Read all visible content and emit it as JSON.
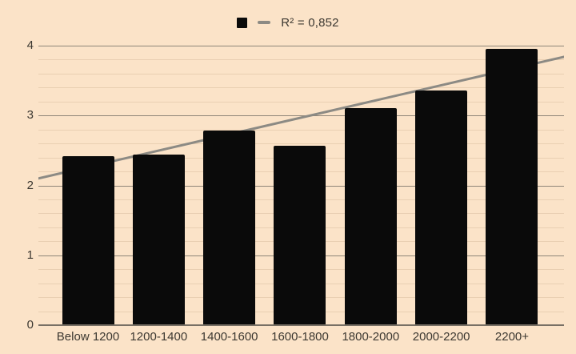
{
  "chart_data": {
    "type": "bar",
    "categories": [
      "Below 1200",
      "1200-1400",
      "1400-1600",
      "1600-1800",
      "1800-2000",
      "2000-2200",
      "2200+"
    ],
    "values": [
      2.42,
      2.44,
      2.79,
      2.57,
      3.11,
      3.36,
      3.95
    ],
    "title": "",
    "xlabel": "",
    "ylabel": "",
    "ylim": [
      0,
      4
    ],
    "yticks": [
      0,
      1,
      2,
      3,
      4
    ],
    "y_tick_labels": [
      "0",
      "1",
      "2",
      "3",
      "4"
    ],
    "minor_tick_step": 0.2,
    "grid": true,
    "legend_position": "top-center",
    "trendline": {
      "label": "R² = 0,852",
      "r_squared": "0,852",
      "start_value": 2.1,
      "end_value": 3.84
    }
  },
  "legend": {
    "trendline_label": "R² = 0,852"
  },
  "colors": {
    "background": "#fbe3c8",
    "bar": "#0a0a0a",
    "major_gridline": "#8f8578",
    "minor_gridline": "#e9cfb2",
    "axis_line": "#787065",
    "trendline": "#8c8a84",
    "text": "#3c3831"
  }
}
